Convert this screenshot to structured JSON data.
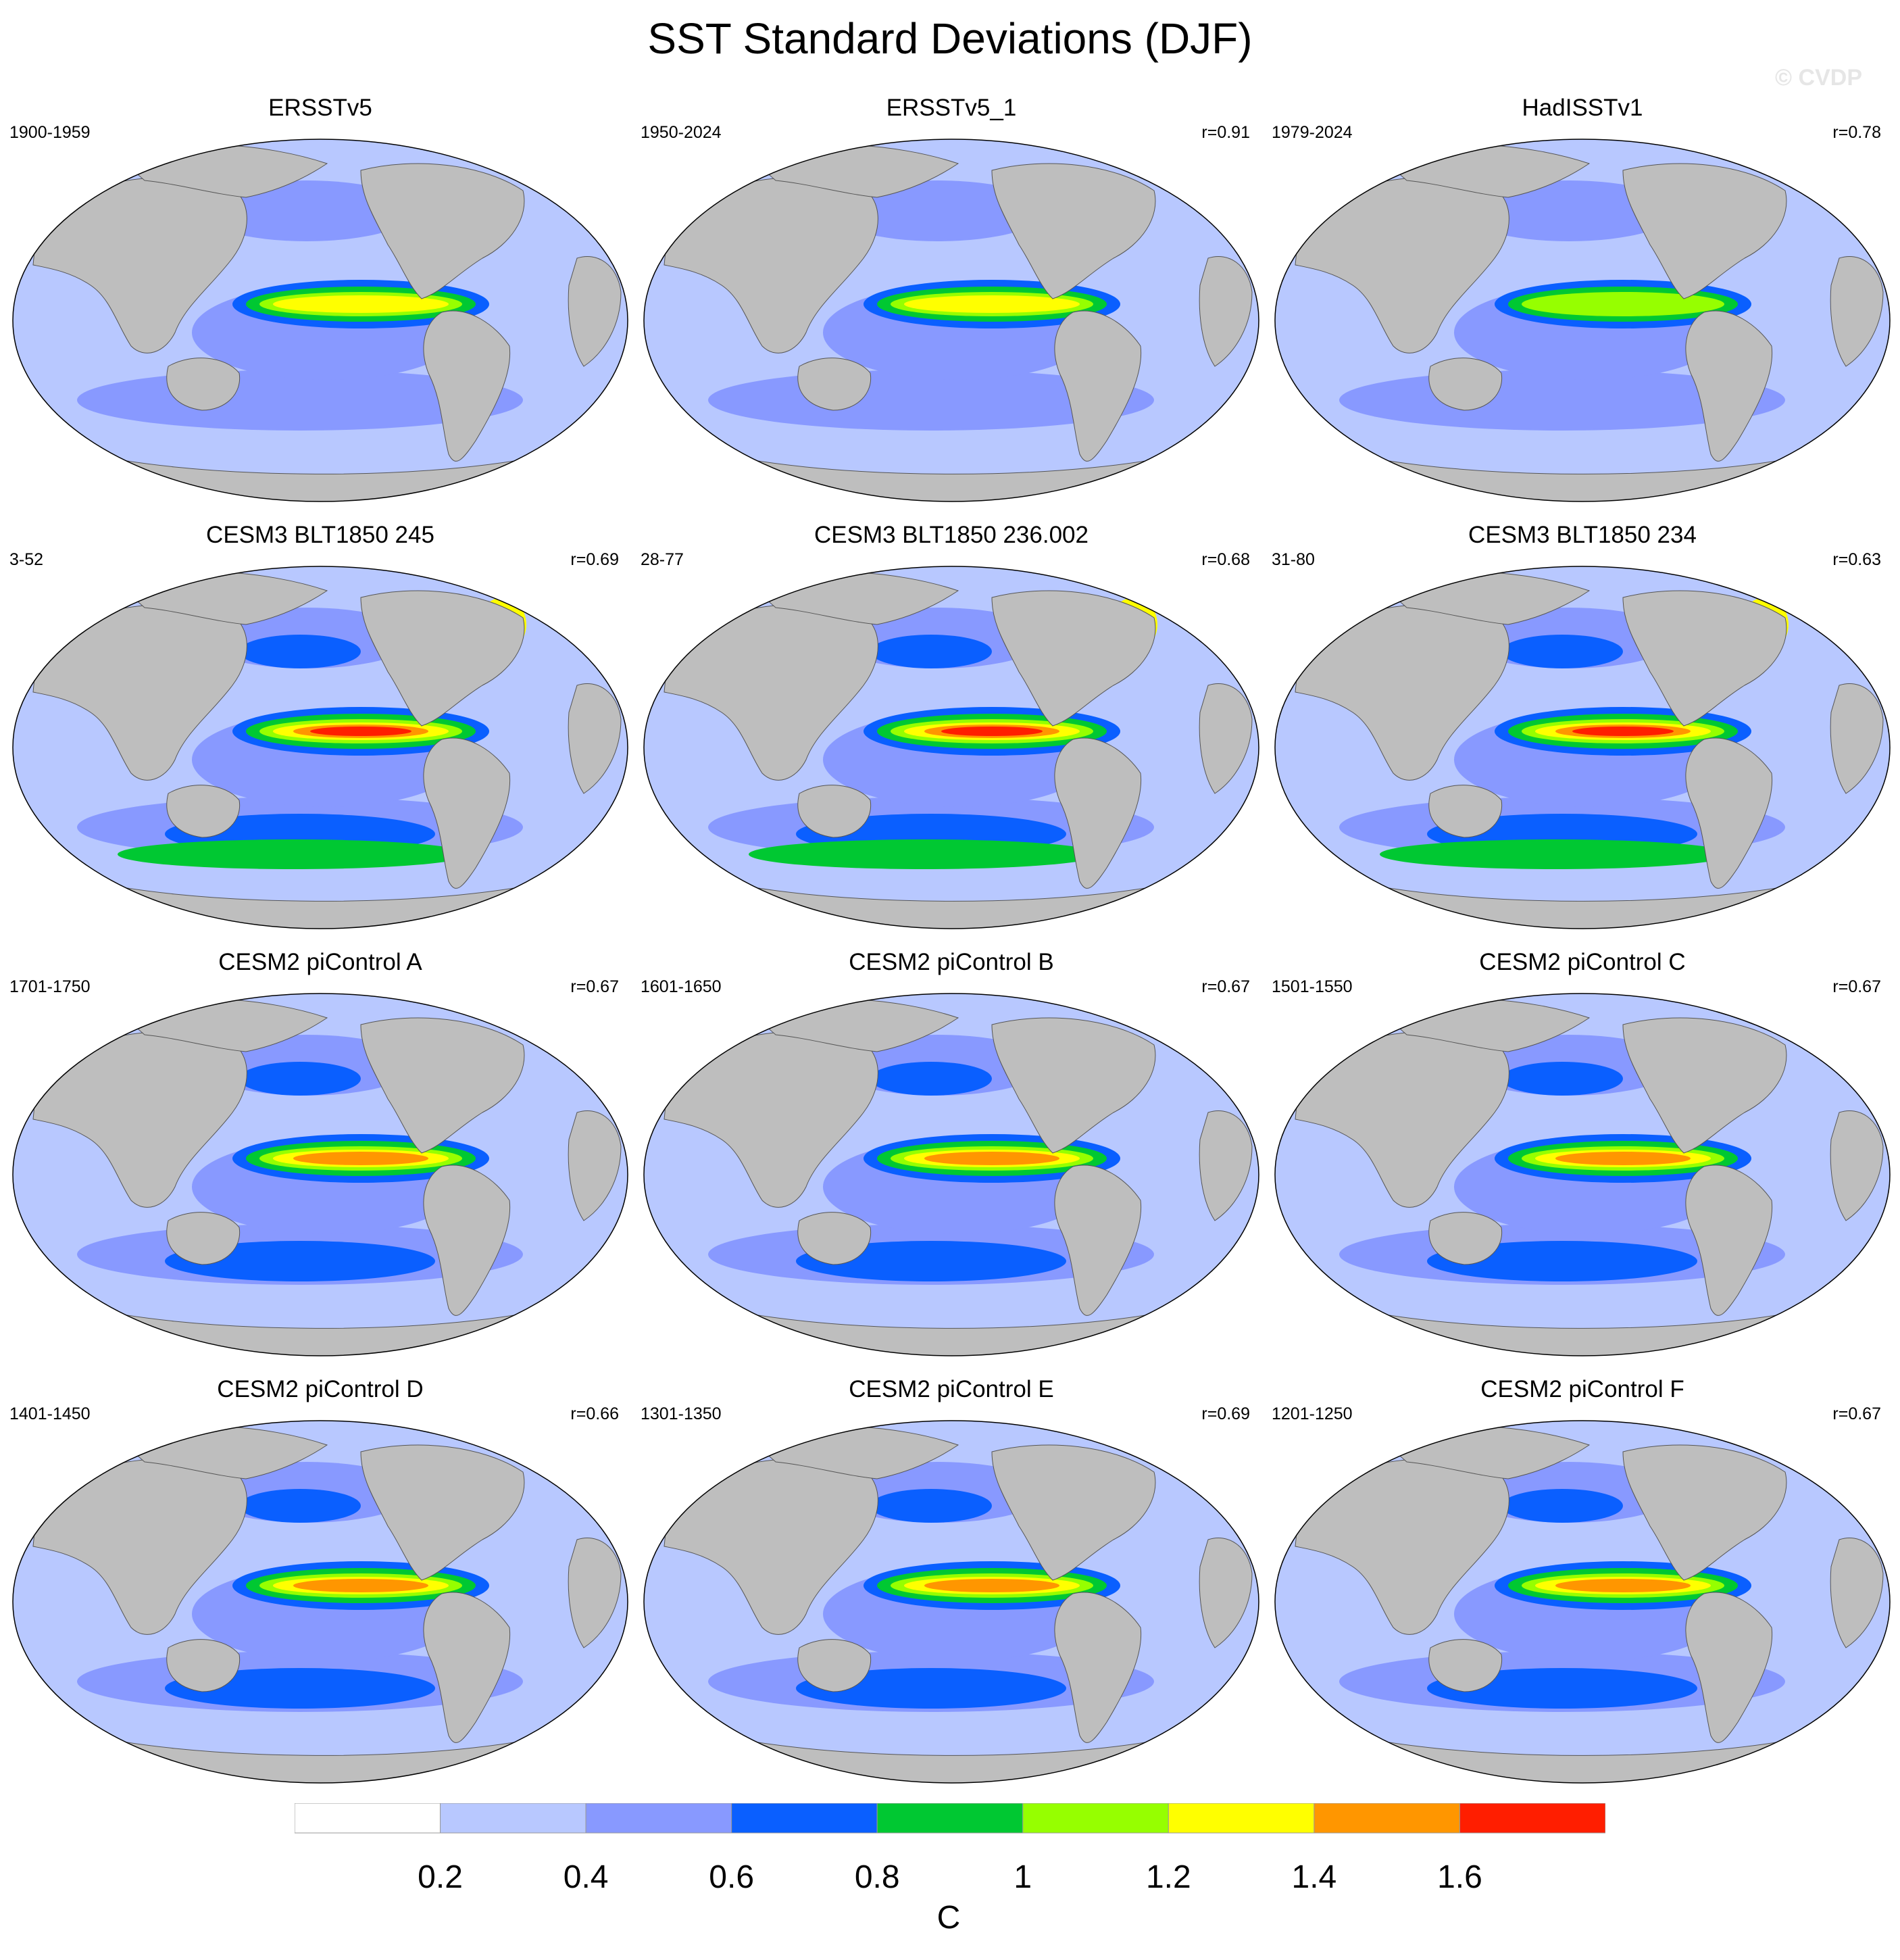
{
  "title": "SST Standard Deviations (DJF)",
  "watermark": "© CVDP",
  "colors": {
    "land": "#bebebe",
    "ocean_base": "#b8c8ff",
    "levels": [
      "#ffffff",
      "#b8c8ff",
      "#8899ff",
      "#0a5fff",
      "#00c832",
      "#96ff00",
      "#ffff00",
      "#ff9600",
      "#ff1e00"
    ]
  },
  "panels": [
    {
      "title": "ERSSTv5",
      "period": "1900-1959",
      "corr": "",
      "amp": 0.75
    },
    {
      "title": "ERSSTv5_1",
      "period": "1950-2024",
      "corr": "r=0.91",
      "amp": 0.75
    },
    {
      "title": "HadISSTv1",
      "period": "1979-2024",
      "corr": "r=0.78",
      "amp": 0.6
    },
    {
      "title": "CESM3 BLT1850 245",
      "period": "3-52",
      "corr": "r=0.69",
      "amp": 1.2
    },
    {
      "title": "CESM3 BLT1850 236.002",
      "period": "28-77",
      "corr": "r=0.68",
      "amp": 1.15
    },
    {
      "title": "CESM3 BLT1850 234",
      "period": "31-80",
      "corr": "r=0.63",
      "amp": 1.15
    },
    {
      "title": "CESM2 piControl A",
      "period": "1701-1750",
      "corr": "r=0.67",
      "amp": 0.85
    },
    {
      "title": "CESM2 piControl B",
      "period": "1601-1650",
      "corr": "r=0.67",
      "amp": 0.82
    },
    {
      "title": "CESM2 piControl C",
      "period": "1501-1550",
      "corr": "r=0.67",
      "amp": 0.88
    },
    {
      "title": "CESM2 piControl D",
      "period": "1401-1450",
      "corr": "r=0.66",
      "amp": 0.83
    },
    {
      "title": "CESM2 piControl E",
      "period": "1301-1350",
      "corr": "r=0.69",
      "amp": 0.8
    },
    {
      "title": "CESM2 piControl F",
      "period": "1201-1250",
      "corr": "r=0.67",
      "amp": 0.8
    }
  ],
  "colorbar": {
    "labels": [
      "0.2",
      "0.4",
      "0.6",
      "0.8",
      "1",
      "1.2",
      "1.4",
      "1.6"
    ],
    "unit": "C"
  }
}
